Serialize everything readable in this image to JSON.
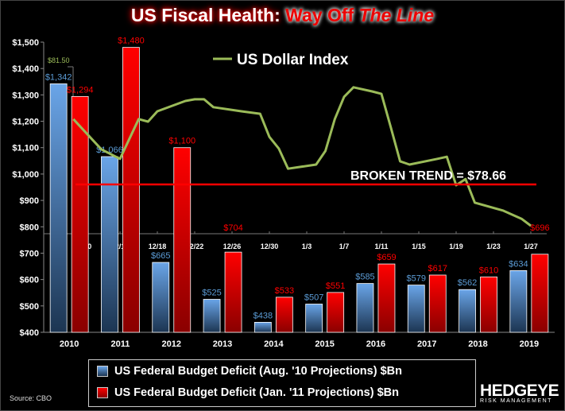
{
  "title": {
    "part1": "US Fiscal Health: ",
    "part2": "Way Off ",
    "part3": "The Line"
  },
  "chart_data": {
    "type": "bar",
    "categories": [
      "2010",
      "2011",
      "2012",
      "2013",
      "2014",
      "2015",
      "2016",
      "2017",
      "2018",
      "2019"
    ],
    "ylim": [
      400,
      1500
    ],
    "yticks": [
      "$400",
      "$500",
      "$600",
      "$700",
      "$800",
      "$900",
      "$1,000",
      "$1,100",
      "$1,200",
      "$1,300",
      "$1,400",
      "$1,500"
    ],
    "series": [
      {
        "name": "US Federal Budget Deficit (Aug. '10 Projections) $Bn",
        "color": "#5b9bd5",
        "values": [
          1342,
          1066,
          665,
          525,
          438,
          507,
          585,
          579,
          562,
          634
        ],
        "labels": [
          "$1,342",
          "$1,066",
          "$665",
          "$525",
          "$438",
          "$507",
          "$585",
          "$579",
          "$562",
          "$634"
        ]
      },
      {
        "name": "US Federal Budget Deficit (Jan. '11 Projections) $Bn",
        "color": "#ff0000",
        "values": [
          1294,
          1480,
          1100,
          704,
          533,
          551,
          659,
          617,
          610,
          696
        ],
        "labels": [
          "$1,294",
          "$1,480",
          "$1,100",
          "$704",
          "$533",
          "$551",
          "$659",
          "$617",
          "$610",
          "$696"
        ]
      }
    ],
    "overlay": {
      "type": "line",
      "name": "US Dollar Index",
      "color": "#9bbb59",
      "top_label": "$81.50",
      "date_ticks": [
        "12/10",
        "12/14",
        "12/18",
        "12/22",
        "12/26",
        "12/30",
        "1/3",
        "1/7",
        "1/11",
        "1/15",
        "1/19",
        "1/23",
        "1/27"
      ],
      "dates": [
        "2010-12-09",
        "2010-12-12",
        "2010-12-14",
        "2010-12-16",
        "2010-12-17",
        "2010-12-18",
        "2010-12-21",
        "2010-12-22",
        "2010-12-23",
        "2010-12-24",
        "2010-12-27",
        "2010-12-29",
        "2010-12-30",
        "2010-12-31",
        "2011-01-01",
        "2011-01-04",
        "2011-01-05",
        "2011-01-06",
        "2011-01-07",
        "2011-01-08",
        "2011-01-10",
        "2011-01-11",
        "2011-01-12",
        "2011-01-13",
        "2011-01-14",
        "2011-01-17",
        "2011-01-18",
        "2011-01-19",
        "2011-01-20",
        "2011-01-21",
        "2011-01-24",
        "2011-01-25",
        "2011-01-26",
        "2011-01-27"
      ],
      "values": [
        80.24,
        79.51,
        79.28,
        80.24,
        80.18,
        80.43,
        80.68,
        80.72,
        80.72,
        80.53,
        80.43,
        80.37,
        79.81,
        79.53,
        79.04,
        79.14,
        79.47,
        80.24,
        80.78,
        81.01,
        80.91,
        80.85,
        80.04,
        79.22,
        79.14,
        79.28,
        79.33,
        78.64,
        78.79,
        78.22,
        78.03,
        77.93,
        77.83,
        77.66
      ],
      "trend": {
        "value": 78.66,
        "label": "BROKEN TREND = $78.66",
        "color": "#ff0000"
      }
    },
    "legend_position": "bottom"
  },
  "source": "Source: CBO",
  "logo": {
    "name": "HEDGEYE",
    "tagline": "RISK MANAGEMENT"
  }
}
